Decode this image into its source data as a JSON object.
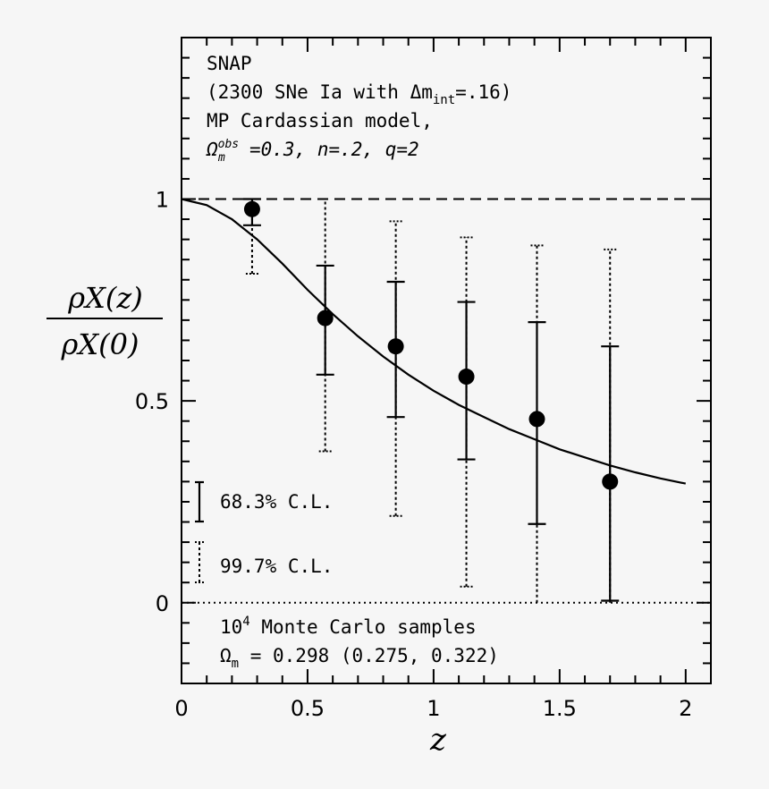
{
  "chart_data": {
    "type": "scatter",
    "xlabel": "z",
    "ylabel_top": "ρX(z)",
    "ylabel_bottom": "ρX(0)",
    "xlim": [
      0,
      2.1
    ],
    "ylim": [
      -0.2,
      1.4
    ],
    "xticks": [
      0,
      0.5,
      1,
      1.5,
      2
    ],
    "xtick_labels": [
      "0",
      "0.5",
      "1",
      "1.5",
      "2"
    ],
    "yticks": [
      0,
      0.5,
      1
    ],
    "ytick_labels": [
      "0",
      "0.5",
      "1"
    ],
    "reference_lines": [
      {
        "name": "unity",
        "y": 1,
        "style": "dashed"
      },
      {
        "name": "zero",
        "y": 0,
        "style": "dotted"
      }
    ],
    "model_curve": {
      "name": "MP Cardassian model",
      "x": [
        0,
        0.1,
        0.2,
        0.3,
        0.4,
        0.5,
        0.6,
        0.7,
        0.8,
        0.9,
        1.0,
        1.1,
        1.2,
        1.3,
        1.4,
        1.5,
        1.6,
        1.7,
        1.8,
        1.9,
        2.0
      ],
      "y": [
        1.0,
        0.985,
        0.95,
        0.9,
        0.84,
        0.775,
        0.715,
        0.66,
        0.61,
        0.565,
        0.525,
        0.49,
        0.46,
        0.43,
        0.405,
        0.38,
        0.36,
        0.34,
        0.323,
        0.308,
        0.295
      ]
    },
    "points": [
      {
        "x": 0.28,
        "y": 0.975,
        "cl68": [
          0.935,
          1.0
        ],
        "cl997": [
          0.815,
          1.0
        ]
      },
      {
        "x": 0.57,
        "y": 0.705,
        "cl68": [
          0.565,
          0.835
        ],
        "cl997": [
          0.375,
          1.0
        ]
      },
      {
        "x": 0.85,
        "y": 0.635,
        "cl68": [
          0.46,
          0.795
        ],
        "cl997": [
          0.215,
          0.945
        ]
      },
      {
        "x": 1.13,
        "y": 0.56,
        "cl68": [
          0.355,
          0.745
        ],
        "cl997": [
          0.04,
          0.905
        ]
      },
      {
        "x": 1.41,
        "y": 0.455,
        "cl68": [
          0.195,
          0.695
        ],
        "cl997": [
          0.0,
          0.885
        ]
      },
      {
        "x": 1.7,
        "y": 0.3,
        "cl68": [
          0.005,
          0.635
        ],
        "cl997": [
          0.0,
          0.875
        ]
      }
    ],
    "legend": {
      "solid_label": "68.3% C.L.",
      "dotted_label": "99.7% C.L."
    },
    "annotations": {
      "line1": "SNAP",
      "line2_prefix": "(2300 SNe Ia with ",
      "line2_delta": "Δm",
      "line2_sub": "int",
      "line2_suffix": "=.16)",
      "line3": "MP Cardassian model,",
      "line4_omega": "Ω",
      "line4_sup": "obs",
      "line4_sub": "m",
      "line4_rest": "=0.3, n=.2, q=2",
      "mc_samples_base": "10",
      "mc_samples_exp": "4",
      "mc_samples_text": " Monte Carlo samples",
      "omega_m_symbol": "Ω",
      "omega_m_sub": "m",
      "omega_m_value": " = 0.298 (0.275, 0.322)"
    }
  }
}
